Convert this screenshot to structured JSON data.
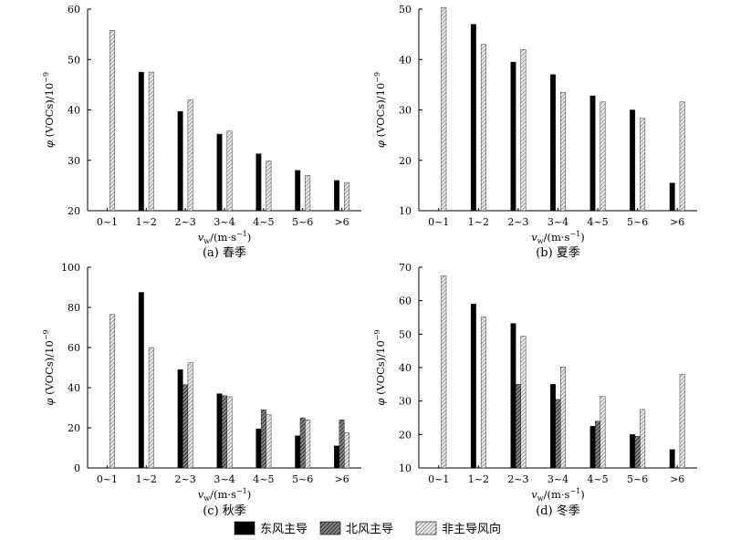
{
  "chart_data": [
    {
      "type": "bar",
      "panel": "a",
      "caption": "(a) 春季",
      "ylabel_symbol": "φ",
      "ylabel_rest": " (VOCs)/10",
      "ylabel_exp": "−9",
      "xlabel_main": "v",
      "xlabel_sub": "w",
      "xlabel_unit": "/(m·s",
      "xlabel_exp": "−1",
      "xlabel_close": ")",
      "categories": [
        "0~1",
        "1~2",
        "2~3",
        "3~4",
        "4~5",
        "5~6",
        ">6"
      ],
      "ylim": [
        20,
        60
      ],
      "yticks": [
        20,
        30,
        40,
        50,
        60
      ],
      "series": [
        {
          "name": "东风主导",
          "values": [
            null,
            47.5,
            39.7,
            35.2,
            31.3,
            28.0,
            26.0
          ]
        },
        {
          "name": "北风主导",
          "values": [
            null,
            null,
            null,
            null,
            null,
            null,
            null
          ]
        },
        {
          "name": "非主导风向",
          "values": [
            55.8,
            47.5,
            42.0,
            35.8,
            29.9,
            27.0,
            25.6
          ]
        }
      ]
    },
    {
      "type": "bar",
      "panel": "b",
      "caption": "(b) 夏季",
      "ylabel_symbol": "φ",
      "ylabel_rest": " (VOCs)/10",
      "ylabel_exp": "−9",
      "xlabel_main": "v",
      "xlabel_sub": "w",
      "xlabel_unit": "/(m·s",
      "xlabel_exp": "−1",
      "xlabel_close": ")",
      "categories": [
        "0~1",
        "1~2",
        "2~3",
        "3~4",
        "4~5",
        "5~6",
        ">6"
      ],
      "ylim": [
        10,
        50
      ],
      "yticks": [
        10,
        20,
        30,
        40,
        50
      ],
      "series": [
        {
          "name": "东风主导",
          "values": [
            null,
            47.0,
            39.5,
            37.0,
            32.8,
            30.0,
            15.5
          ]
        },
        {
          "name": "北风主导",
          "values": [
            null,
            null,
            null,
            null,
            null,
            null,
            null
          ]
        },
        {
          "name": "非主导风向",
          "values": [
            50.3,
            43.0,
            42.0,
            33.5,
            31.6,
            28.3,
            31.6
          ]
        }
      ]
    },
    {
      "type": "bar",
      "panel": "c",
      "caption": "(c) 秋季",
      "ylabel_symbol": "φ",
      "ylabel_rest": " (VOCs)/10",
      "ylabel_exp": "−9",
      "xlabel_main": "v",
      "xlabel_sub": "w",
      "xlabel_unit": "/(m·s",
      "xlabel_exp": "−1",
      "xlabel_close": ")",
      "categories": [
        "0~1",
        "1~2",
        "2~3",
        "3~4",
        "4~5",
        "5~6",
        ">6"
      ],
      "ylim": [
        0,
        100
      ],
      "yticks": [
        0,
        20,
        40,
        60,
        80,
        100
      ],
      "series": [
        {
          "name": "东风主导",
          "values": [
            null,
            87.5,
            49.0,
            37.0,
            19.5,
            16.0,
            11.0
          ]
        },
        {
          "name": "北风主导",
          "values": [
            null,
            null,
            41.5,
            36.0,
            29.0,
            25.0,
            24.0
          ]
        },
        {
          "name": "非主导风向",
          "values": [
            76.5,
            60.0,
            52.5,
            35.5,
            26.5,
            24.0,
            17.5
          ]
        }
      ]
    },
    {
      "type": "bar",
      "panel": "d",
      "caption": "(d) 冬季",
      "ylabel_symbol": "φ",
      "ylabel_rest": " (VOCs)/10",
      "ylabel_exp": "−9",
      "xlabel_main": "v",
      "xlabel_sub": "w",
      "xlabel_unit": "/(m·s",
      "xlabel_exp": "−1",
      "xlabel_close": ")",
      "categories": [
        "0~1",
        "1~2",
        "2~3",
        "3~4",
        "4~5",
        "5~6",
        ">6"
      ],
      "ylim": [
        10,
        70
      ],
      "yticks": [
        10,
        20,
        30,
        40,
        50,
        60,
        70
      ],
      "series": [
        {
          "name": "东风主导",
          "values": [
            null,
            59.0,
            53.2,
            35.0,
            22.5,
            20.0,
            15.5
          ]
        },
        {
          "name": "北风主导",
          "values": [
            null,
            null,
            35.0,
            30.5,
            24.0,
            19.5,
            null
          ]
        },
        {
          "name": "非主导风向",
          "values": [
            67.5,
            55.2,
            49.4,
            40.2,
            31.4,
            27.5,
            38.0
          ]
        }
      ]
    }
  ],
  "legend": {
    "position": "bottom-center",
    "items": [
      {
        "label": "东风主导",
        "pattern": "solid-black"
      },
      {
        "label": "北风主导",
        "pattern": "dark-hatch"
      },
      {
        "label": "非主导风向",
        "pattern": "light-hatch"
      }
    ]
  },
  "colors": {
    "east": "#000000",
    "north": "#3a3a3a",
    "nonDominant": "#b9b9b9"
  }
}
